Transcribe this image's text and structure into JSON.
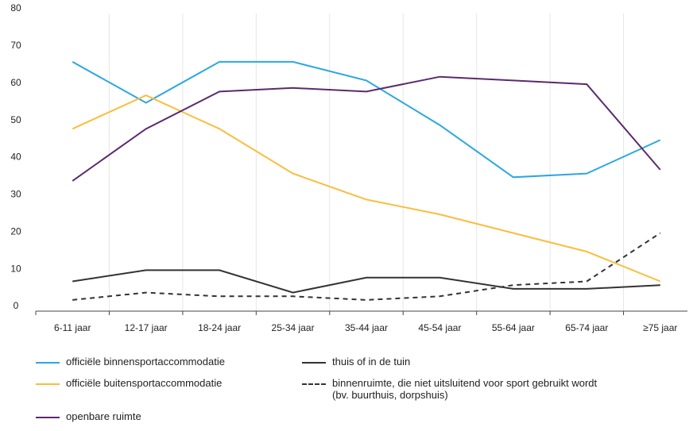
{
  "chart_data": {
    "type": "line",
    "categories": [
      "6-11 jaar",
      "12-17 jaar",
      "18-24 jaar",
      "25-34 jaar",
      "35-44 jaar",
      "45-54 jaar",
      "55-64 jaar",
      "65-74 jaar",
      "≥75 jaar"
    ],
    "series": [
      {
        "name": "officiële binnensportaccommodatie",
        "color": "#2aa8e0",
        "values": [
          67,
          56,
          67,
          67,
          62,
          50,
          36,
          37,
          46
        ]
      },
      {
        "name": "thuis of in de tuin",
        "color": "#333333",
        "values": [
          8,
          11,
          11,
          5,
          9,
          9,
          6,
          6,
          7
        ]
      },
      {
        "name": "officiële buitensportaccommodatie",
        "color": "#fbbd3c",
        "values": [
          49,
          58,
          49,
          37,
          30,
          26,
          21,
          16,
          8
        ]
      },
      {
        "name": "binnenruimte, die niet uitsluitend voor sport gebruikt wordt (bv. buurthuis, dorpshuis)",
        "color": "#333333",
        "dashed": true,
        "values": [
          3,
          5,
          4,
          4,
          3,
          4,
          7,
          8,
          21
        ]
      },
      {
        "name": "openbare ruimte",
        "color": "#5b2a6e",
        "values": [
          35,
          49,
          59,
          60,
          59,
          63,
          62,
          61,
          38
        ]
      }
    ],
    "ylim": [
      0,
      80
    ],
    "yticks": [
      0,
      10,
      20,
      30,
      40,
      50,
      60,
      70,
      80
    ]
  }
}
